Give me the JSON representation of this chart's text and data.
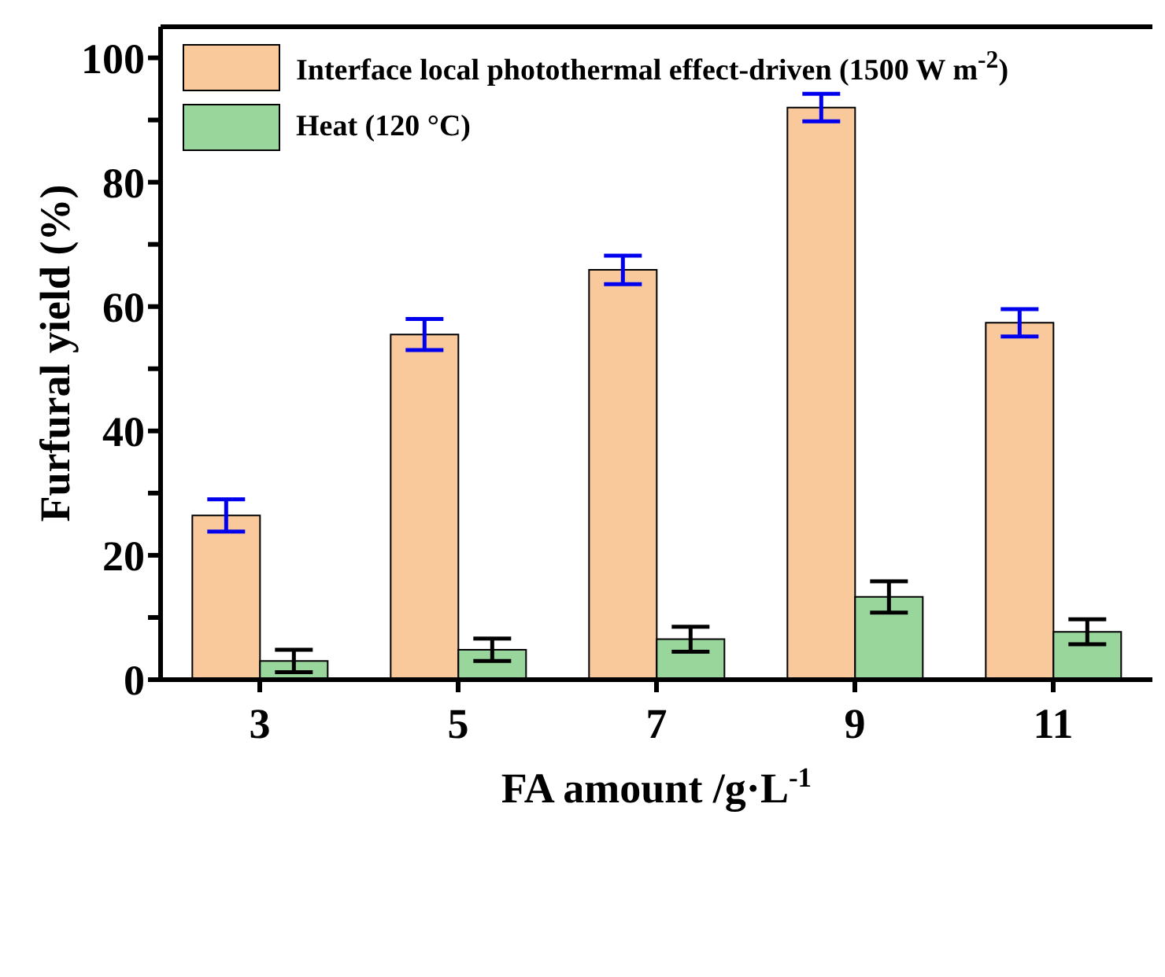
{
  "chart_data": {
    "type": "bar",
    "xlabel": "FA amount /g·L$^{-1}$",
    "ylabel": "Furfural yield (%)",
    "categories": [
      "3",
      "5",
      "7",
      "9",
      "11"
    ],
    "series": [
      {
        "name": "Interface local photothermal effect-driven (1500 W m$^{-2}$)",
        "color": "#f9c89b",
        "values": [
          26.4,
          55.5,
          65.9,
          92.0,
          57.4
        ],
        "errors": [
          2.6,
          2.5,
          2.3,
          2.2,
          2.2
        ]
      },
      {
        "name": "Heat (120 °C)",
        "color": "#99d69c",
        "values": [
          3.0,
          4.8,
          6.5,
          13.3,
          7.7
        ],
        "errors": [
          1.8,
          1.8,
          2.0,
          2.5,
          2.0
        ]
      }
    ],
    "ylim": [
      0,
      105
    ],
    "yticks": [
      0,
      {
        "value": 10,
        "label": null
      },
      20,
      {
        "value": 30,
        "label": null
      },
      40,
      {
        "value": 50,
        "label": null
      },
      60,
      {
        "value": 70,
        "label": null
      },
      80,
      {
        "value": 90,
        "label": null
      },
      100
    ],
    "grid": false,
    "legend": "top left"
  }
}
